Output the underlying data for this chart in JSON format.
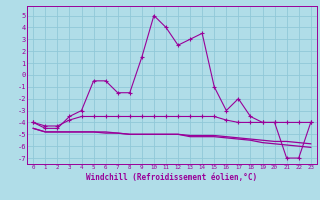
{
  "xlabel": "Windchill (Refroidissement éolien,°C)",
  "bg_color": "#b0dde8",
  "grid_color": "#90c8d8",
  "line_color": "#990099",
  "xlim": [
    -0.5,
    23.5
  ],
  "ylim": [
    -7.5,
    5.8
  ],
  "xticks": [
    0,
    1,
    2,
    3,
    4,
    5,
    6,
    7,
    8,
    9,
    10,
    11,
    12,
    13,
    14,
    15,
    16,
    17,
    18,
    19,
    20,
    21,
    22,
    23
  ],
  "yticks": [
    -7,
    -6,
    -5,
    -4,
    -3,
    -2,
    -1,
    0,
    1,
    2,
    3,
    4,
    5
  ],
  "series1": [
    -4.0,
    -4.5,
    -4.5,
    -3.5,
    -3.0,
    -0.5,
    -0.5,
    -1.5,
    -1.5,
    1.5,
    5.0,
    4.0,
    2.5,
    3.0,
    3.5,
    -1.0,
    -3.0,
    -2.0,
    -3.5,
    -4.0,
    -4.0,
    -7.0,
    -7.0,
    -4.0
  ],
  "series2": [
    -4.0,
    -4.3,
    -4.3,
    -3.8,
    -3.5,
    -3.5,
    -3.5,
    -3.5,
    -3.5,
    -3.5,
    -3.5,
    -3.5,
    -3.5,
    -3.5,
    -3.5,
    -3.5,
    -3.8,
    -4.0,
    -4.0,
    -4.0,
    -4.0,
    -4.0,
    -4.0,
    -4.0
  ],
  "series3": [
    -4.5,
    -4.8,
    -4.8,
    -4.8,
    -4.8,
    -4.8,
    -4.8,
    -4.9,
    -5.0,
    -5.0,
    -5.0,
    -5.0,
    -5.0,
    -5.1,
    -5.1,
    -5.1,
    -5.2,
    -5.3,
    -5.4,
    -5.5,
    -5.6,
    -5.6,
    -5.7,
    -5.8
  ],
  "series4": [
    -4.5,
    -4.8,
    -4.8,
    -4.8,
    -4.8,
    -4.8,
    -4.9,
    -4.9,
    -5.0,
    -5.0,
    -5.0,
    -5.0,
    -5.0,
    -5.2,
    -5.2,
    -5.2,
    -5.3,
    -5.4,
    -5.5,
    -5.7,
    -5.8,
    -5.9,
    -6.0,
    -6.1
  ]
}
